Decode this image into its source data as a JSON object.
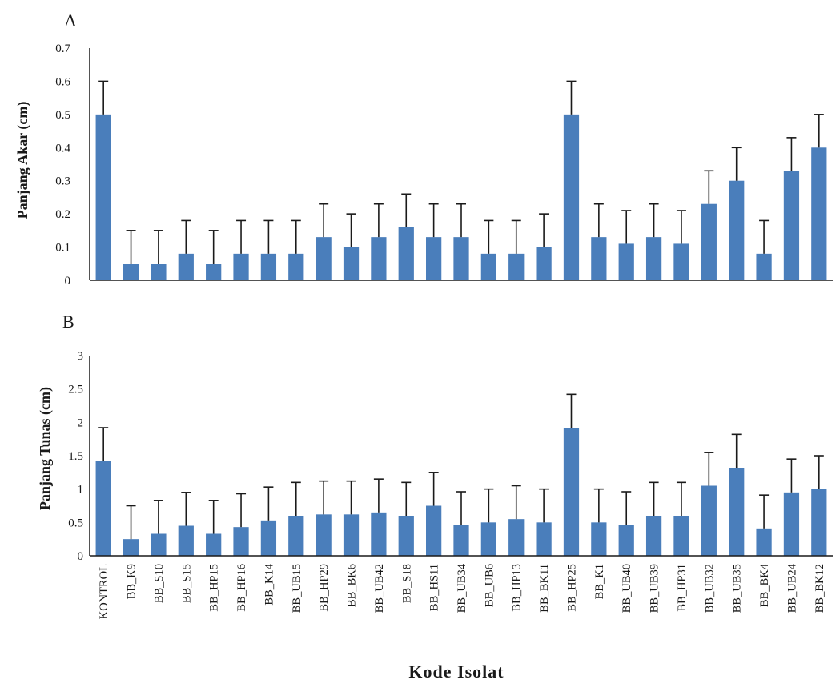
{
  "figure": {
    "x_axis_title": "Kode Isolat"
  },
  "categories": [
    "KONTROL",
    "BB_K9",
    "BB_S10",
    "BB_S15",
    "BB_HP15",
    "BB_HP16",
    "BB_K14",
    "BB_UB15",
    "BB_HP29",
    "BB_BK6",
    "BB_UB42",
    "BB_S18",
    "BB_HS11",
    "BB_UB34",
    "BB_UB6",
    "BB_HP13",
    "BB_BK11",
    "BB_HP25",
    "BB_K1",
    "BB_UB40",
    "BB_UB39",
    "BB_HP31",
    "BB_UB32",
    "BB_UB35",
    "BB_BK4",
    "BB_UB24",
    "BB_BK12"
  ],
  "chart_data": [
    {
      "type": "bar",
      "panel": "A",
      "title": "",
      "xlabel": "",
      "ylabel": "Panjang Akar (cm)",
      "ylim": [
        0,
        0.7
      ],
      "yticks": [
        "0",
        "0.1",
        "0.2",
        "0.3",
        "0.4",
        "0.5",
        "0.6",
        "0.7"
      ],
      "bar_color": "#4a7ebb",
      "error_bar_color": "#1a1a1a",
      "categories": [
        "KONTROL",
        "BB_K9",
        "BB_S10",
        "BB_S15",
        "BB_HP15",
        "BB_HP16",
        "BB_K14",
        "BB_UB15",
        "BB_HP29",
        "BB_BK6",
        "BB_UB42",
        "BB_S18",
        "BB_HS11",
        "BB_UB34",
        "BB_UB6",
        "BB_HP13",
        "BB_BK11",
        "BB_HP25",
        "BB_K1",
        "BB_UB40",
        "BB_UB39",
        "BB_HP31",
        "BB_UB32",
        "BB_UB35",
        "BB_BK4",
        "BB_UB24",
        "BB_BK12"
      ],
      "values": [
        0.5,
        0.05,
        0.05,
        0.08,
        0.05,
        0.08,
        0.08,
        0.08,
        0.13,
        0.1,
        0.13,
        0.16,
        0.13,
        0.13,
        0.08,
        0.08,
        0.1,
        0.5,
        0.13,
        0.11,
        0.13,
        0.11,
        0.23,
        0.3,
        0.08,
        0.33,
        0.4
      ],
      "error_upper": [
        0.1,
        0.1,
        0.1,
        0.1,
        0.1,
        0.1,
        0.1,
        0.1,
        0.1,
        0.1,
        0.1,
        0.1,
        0.1,
        0.1,
        0.1,
        0.1,
        0.1,
        0.1,
        0.1,
        0.1,
        0.1,
        0.1,
        0.1,
        0.1,
        0.1,
        0.1,
        0.1
      ]
    },
    {
      "type": "bar",
      "panel": "B",
      "title": "",
      "xlabel": "Kode Isolat",
      "ylabel": "Panjang Tunas (cm)",
      "ylim": [
        0,
        3
      ],
      "yticks": [
        "0",
        "0.5",
        "1",
        "1.5",
        "2",
        "2.5",
        "3"
      ],
      "bar_color": "#4a7ebb",
      "error_bar_color": "#1a1a1a",
      "categories": [
        "KONTROL",
        "BB_K9",
        "BB_S10",
        "BB_S15",
        "BB_HP15",
        "BB_HP16",
        "BB_K14",
        "BB_UB15",
        "BB_HP29",
        "BB_BK6",
        "BB_UB42",
        "BB_S18",
        "BB_HS11",
        "BB_UB34",
        "BB_UB6",
        "BB_HP13",
        "BB_BK11",
        "BB_HP25",
        "BB_K1",
        "BB_UB40",
        "BB_UB39",
        "BB_HP31",
        "BB_UB32",
        "BB_UB35",
        "BB_BK4",
        "BB_UB24",
        "BB_BK12"
      ],
      "values": [
        1.42,
        0.25,
        0.33,
        0.45,
        0.33,
        0.43,
        0.53,
        0.6,
        0.62,
        0.62,
        0.65,
        0.6,
        0.75,
        0.46,
        0.5,
        0.55,
        0.5,
        1.92,
        0.5,
        0.46,
        0.6,
        0.6,
        1.05,
        1.32,
        0.41,
        0.95,
        1.0
      ],
      "error_upper": [
        0.5,
        0.5,
        0.5,
        0.5,
        0.5,
        0.5,
        0.5,
        0.5,
        0.5,
        0.5,
        0.5,
        0.5,
        0.5,
        0.5,
        0.5,
        0.5,
        0.5,
        0.5,
        0.5,
        0.5,
        0.5,
        0.5,
        0.5,
        0.5,
        0.5,
        0.5,
        0.5
      ]
    }
  ]
}
